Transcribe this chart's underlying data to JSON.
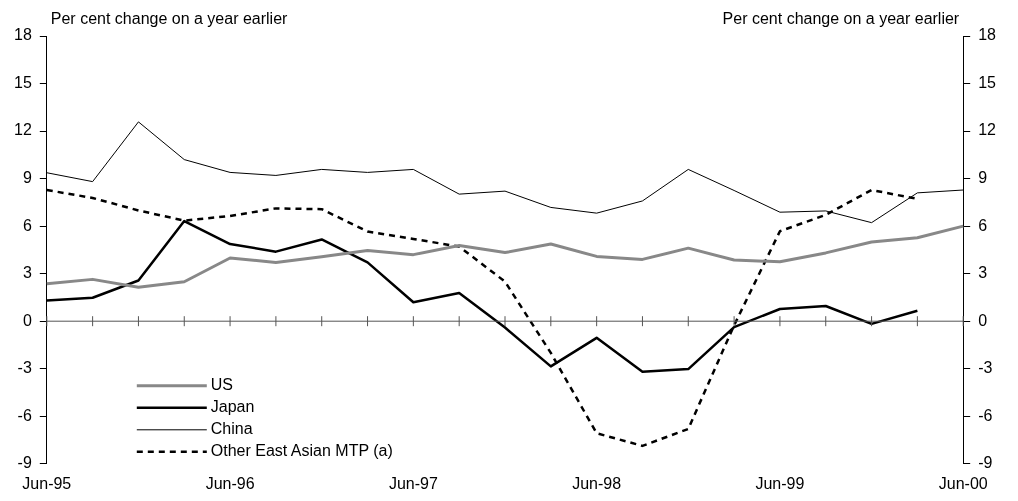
{
  "chart_data": {
    "type": "line",
    "ylabel": "Per cent change on a year earlier",
    "y2label": "Per cent change on a year earlier",
    "categories": [
      "Jun-95",
      null,
      null,
      null,
      "Jun-96",
      null,
      null,
      null,
      "Jun-97",
      null,
      null,
      null,
      "Jun-98",
      null,
      null,
      null,
      "Jun-99",
      null,
      null,
      null,
      "Jun-00"
    ],
    "series": [
      {
        "name": "US",
        "color": "#888888",
        "line_style": "solid",
        "values": [
          2.36,
          2.64,
          2.14,
          2.49,
          3.99,
          3.71,
          4.07,
          4.46,
          4.2,
          4.78,
          4.33,
          4.87,
          4.09,
          3.9,
          4.61,
          3.86,
          3.75,
          4.31,
          5.0,
          5.27,
          6.0
        ]
      },
      {
        "name": "Japan",
        "color": "#000000",
        "line_style": "solid",
        "values": [
          1.31,
          1.48,
          2.57,
          6.32,
          4.87,
          4.39,
          5.16,
          3.71,
          1.2,
          1.78,
          -0.4,
          -2.85,
          -1.05,
          -3.19,
          -3.02,
          -0.37,
          0.77,
          0.96,
          -0.17,
          0.66,
          null
        ]
      },
      {
        "name": "China",
        "color": "#000000",
        "line_style": "solid",
        "values": [
          9.37,
          8.81,
          12.58,
          10.2,
          9.39,
          9.2,
          9.58,
          9.39,
          9.58,
          8.02,
          8.21,
          7.18,
          6.82,
          7.59,
          9.58,
          8.25,
          6.88,
          6.96,
          6.22,
          8.1,
          8.28
        ]
      },
      {
        "name": "Other East Asian MTP (a)",
        "color": "#000000",
        "line_style": "dashed",
        "values": [
          8.28,
          7.78,
          6.99,
          6.35,
          6.64,
          7.12,
          7.07,
          5.66,
          5.19,
          4.71,
          2.5,
          -2.0,
          -7.07,
          -7.87,
          -6.8,
          -0.26,
          5.68,
          6.71,
          8.28,
          7.72,
          null
        ]
      }
    ],
    "ylim": [
      -9,
      18
    ],
    "yticks": [
      -9,
      -6,
      -3,
      0,
      3,
      6,
      9,
      12,
      15,
      18
    ],
    "y2lim": [
      -9,
      18
    ],
    "y2ticks": [
      -9,
      -6,
      -3,
      0,
      3,
      6,
      9,
      12,
      15,
      18
    ],
    "ref_lines": [
      {
        "axis": "y",
        "value": 0,
        "color": "#555555"
      }
    ],
    "grid": false,
    "legend": "bottom left",
    "marker": "none"
  }
}
